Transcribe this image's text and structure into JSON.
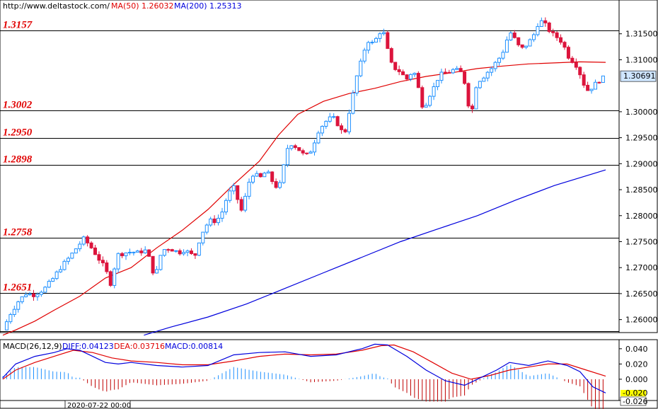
{
  "header": {
    "url": "http://www.deltastock.com/",
    "ma50_label": "MA(50)",
    "ma50_value": "1.26032",
    "ma200_label": "MA(200)",
    "ma200_value": "1.25313"
  },
  "macd_header": {
    "name": "MACD(26,12,9)",
    "diff": "DIFF:0.04123",
    "dea": "DEA:0.03716",
    "macd": "MACD:0.00814"
  },
  "colors": {
    "bull": "#1e90ff",
    "bear": "#dc143c",
    "ma50": "#e00000",
    "ma200": "#0000dd",
    "level_text": "#e00000",
    "current_price_bg": "#cfe6ff",
    "macd_hist_pos": "#1e90ff",
    "macd_hist_neg": "#c00000"
  },
  "chart_data": {
    "type": "candlestick",
    "price_axis": {
      "ylim": [
        1.2575,
        1.3215
      ],
      "ticks": [
        "1.31500",
        "1.31000",
        "1.30000",
        "1.29500",
        "1.29000",
        "1.28500",
        "1.28000",
        "1.27500",
        "1.27000",
        "1.26500",
        "1.26000"
      ],
      "current_price": "1.30691"
    },
    "levels": [
      {
        "label": "1.3157",
        "value": 1.3157
      },
      {
        "label": "1.3002",
        "value": 1.3002
      },
      {
        "label": "1.2950",
        "value": 1.295
      },
      {
        "label": "1.2898",
        "value": 1.2898
      },
      {
        "label": "1.2758",
        "value": 1.2758
      },
      {
        "label": "1.2651",
        "value": 1.2651
      },
      {
        "label": "",
        "value": 1.2578
      }
    ],
    "close_path": [
      [
        0,
        1.258
      ],
      [
        6,
        1.2612
      ],
      [
        12,
        1.2635
      ],
      [
        18,
        1.265
      ],
      [
        24,
        1.2648
      ],
      [
        32,
        1.2658
      ],
      [
        38,
        1.2675
      ],
      [
        45,
        1.27
      ],
      [
        52,
        1.272
      ],
      [
        58,
        1.274
      ],
      [
        63,
        1.2755
      ],
      [
        67,
        1.2745
      ],
      [
        70,
        1.2735
      ],
      [
        74,
        1.272
      ],
      [
        78,
        1.2705
      ],
      [
        81,
        1.269
      ],
      [
        84,
        1.267
      ],
      [
        87,
        1.27
      ],
      [
        90,
        1.2725
      ],
      [
        94,
        1.2728
      ],
      [
        98,
        1.273
      ],
      [
        102,
        1.273
      ],
      [
        106,
        1.2728
      ],
      [
        110,
        1.2735
      ],
      [
        113,
        1.2728
      ],
      [
        116,
        1.27
      ],
      [
        119,
        1.268
      ],
      [
        122,
        1.272
      ],
      [
        126,
        1.2735
      ],
      [
        130,
        1.2738
      ],
      [
        134,
        1.2732
      ],
      [
        138,
        1.273
      ],
      [
        142,
        1.2735
      ],
      [
        146,
        1.2725
      ],
      [
        150,
        1.2725
      ],
      [
        154,
        1.276
      ],
      [
        158,
        1.278
      ],
      [
        162,
        1.279
      ],
      [
        166,
        1.279
      ],
      [
        170,
        1.28
      ],
      [
        174,
        1.283
      ],
      [
        178,
        1.285
      ],
      [
        181,
        1.2855
      ],
      [
        184,
        1.282
      ],
      [
        187,
        1.2805
      ],
      [
        190,
        1.285
      ],
      [
        194,
        1.288
      ],
      [
        197,
        1.288
      ],
      [
        200,
        1.287
      ],
      [
        203,
        1.288
      ],
      [
        206,
        1.2885
      ],
      [
        209,
        1.287
      ],
      [
        212,
        1.286
      ],
      [
        215,
        1.285
      ],
      [
        218,
        1.288
      ],
      [
        221,
        1.2925
      ],
      [
        224,
        1.294
      ],
      [
        227,
        1.2935
      ],
      [
        230,
        1.293
      ],
      [
        233,
        1.292
      ],
      [
        236,
        1.2915
      ],
      [
        239,
        1.292
      ],
      [
        242,
        1.2935
      ],
      [
        245,
        1.296
      ],
      [
        248,
        1.297
      ],
      [
        251,
        1.298
      ],
      [
        254,
        1.2985
      ],
      [
        257,
        1.299
      ],
      [
        260,
        1.298
      ],
      [
        263,
        1.297
      ],
      [
        266,
        1.295
      ],
      [
        269,
        1.299
      ],
      [
        272,
        1.302
      ],
      [
        275,
        1.306
      ],
      [
        278,
        1.3085
      ],
      [
        281,
        1.311
      ],
      [
        284,
        1.314
      ],
      [
        287,
        1.313
      ],
      [
        290,
        1.3135
      ],
      [
        293,
        1.315
      ],
      [
        296,
        1.316
      ],
      [
        299,
        1.313
      ],
      [
        302,
        1.3095
      ],
      [
        305,
        1.3085
      ],
      [
        308,
        1.308
      ],
      [
        311,
        1.3075
      ],
      [
        314,
        1.306
      ],
      [
        317,
        1.307
      ],
      [
        320,
        1.308
      ],
      [
        323,
        1.306
      ],
      [
        326,
        1.3015
      ],
      [
        329,
        1.301
      ],
      [
        332,
        1.303
      ],
      [
        335,
        1.304
      ],
      [
        338,
        1.306
      ],
      [
        341,
        1.307
      ],
      [
        344,
        1.3075
      ],
      [
        347,
        1.3075
      ],
      [
        350,
        1.308
      ],
      [
        353,
        1.308
      ],
      [
        356,
        1.3078
      ],
      [
        359,
        1.307
      ],
      [
        362,
        1.303
      ],
      [
        365,
        1.2985
      ],
      [
        368,
        1.3045
      ],
      [
        371,
        1.306
      ],
      [
        374,
        1.3065
      ],
      [
        377,
        1.3075
      ],
      [
        380,
        1.308
      ],
      [
        383,
        1.309
      ],
      [
        386,
        1.31
      ],
      [
        389,
        1.311
      ],
      [
        392,
        1.313
      ],
      [
        395,
        1.3155
      ],
      [
        398,
        1.3145
      ],
      [
        401,
        1.313
      ],
      [
        404,
        1.312
      ],
      [
        407,
        1.3125
      ],
      [
        410,
        1.3135
      ],
      [
        413,
        1.314
      ],
      [
        416,
        1.3165
      ],
      [
        419,
        1.3175
      ],
      [
        422,
        1.317
      ],
      [
        425,
        1.316
      ],
      [
        428,
        1.315
      ],
      [
        431,
        1.3145
      ],
      [
        434,
        1.314
      ],
      [
        437,
        1.313
      ],
      [
        440,
        1.311
      ],
      [
        443,
        1.31
      ],
      [
        446,
        1.3095
      ],
      [
        449,
        1.308
      ],
      [
        452,
        1.306
      ],
      [
        455,
        1.304
      ],
      [
        458,
        1.3045
      ],
      [
        461,
        1.305
      ],
      [
        464,
        1.306
      ],
      [
        467,
        1.3062
      ],
      [
        470,
        1.3069
      ]
    ],
    "ma50_path": [
      [
        0,
        1.257
      ],
      [
        10,
        1.258
      ],
      [
        25,
        1.2597
      ],
      [
        40,
        1.2618
      ],
      [
        60,
        1.2645
      ],
      [
        80,
        1.268
      ],
      [
        100,
        1.27
      ],
      [
        120,
        1.2738
      ],
      [
        140,
        1.2772
      ],
      [
        160,
        1.2812
      ],
      [
        180,
        1.286
      ],
      [
        200,
        1.2905
      ],
      [
        215,
        1.2955
      ],
      [
        230,
        1.2995
      ],
      [
        250,
        1.302
      ],
      [
        270,
        1.3035
      ],
      [
        290,
        1.3045
      ],
      [
        310,
        1.3058
      ],
      [
        330,
        1.3068
      ],
      [
        350,
        1.3075
      ],
      [
        370,
        1.3083
      ],
      [
        390,
        1.3088
      ],
      [
        410,
        1.3092
      ],
      [
        430,
        1.3094
      ],
      [
        450,
        1.3096
      ],
      [
        470,
        1.3095
      ]
    ],
    "ma200_path": [
      [
        110,
        1.257
      ],
      [
        130,
        1.2585
      ],
      [
        160,
        1.2605
      ],
      [
        190,
        1.263
      ],
      [
        220,
        1.266
      ],
      [
        250,
        1.269
      ],
      [
        280,
        1.272
      ],
      [
        310,
        1.275
      ],
      [
        340,
        1.2775
      ],
      [
        370,
        1.28
      ],
      [
        400,
        1.283
      ],
      [
        430,
        1.2858
      ],
      [
        470,
        1.2888
      ]
    ],
    "macd_axis": {
      "ylim": [
        -0.027,
        0.051
      ],
      "ticks": [
        "0.040",
        "0.020",
        "0.000"
      ],
      "highlight_labels": [
        "-0.020",
        "-0.026"
      ]
    },
    "diff_path": [
      [
        0,
        0.002
      ],
      [
        10,
        0.02
      ],
      [
        25,
        0.03
      ],
      [
        40,
        0.035
      ],
      [
        50,
        0.04
      ],
      [
        60,
        0.038
      ],
      [
        70,
        0.03
      ],
      [
        80,
        0.022
      ],
      [
        90,
        0.02
      ],
      [
        100,
        0.022
      ],
      [
        120,
        0.018
      ],
      [
        140,
        0.016
      ],
      [
        160,
        0.018
      ],
      [
        180,
        0.032
      ],
      [
        200,
        0.035
      ],
      [
        220,
        0.036
      ],
      [
        240,
        0.03
      ],
      [
        260,
        0.032
      ],
      [
        280,
        0.04
      ],
      [
        290,
        0.046
      ],
      [
        300,
        0.045
      ],
      [
        315,
        0.03
      ],
      [
        330,
        0.012
      ],
      [
        345,
        -0.002
      ],
      [
        360,
        -0.008
      ],
      [
        370,
        0.0
      ],
      [
        385,
        0.012
      ],
      [
        395,
        0.022
      ],
      [
        410,
        0.018
      ],
      [
        425,
        0.024
      ],
      [
        440,
        0.018
      ],
      [
        450,
        0.01
      ],
      [
        460,
        -0.01
      ],
      [
        470,
        -0.018
      ]
    ],
    "dea_path": [
      [
        0,
        0.0
      ],
      [
        10,
        0.012
      ],
      [
        25,
        0.022
      ],
      [
        40,
        0.03
      ],
      [
        55,
        0.038
      ],
      [
        70,
        0.035
      ],
      [
        85,
        0.028
      ],
      [
        100,
        0.024
      ],
      [
        120,
        0.022
      ],
      [
        140,
        0.019
      ],
      [
        160,
        0.019
      ],
      [
        180,
        0.024
      ],
      [
        200,
        0.03
      ],
      [
        220,
        0.033
      ],
      [
        240,
        0.032
      ],
      [
        260,
        0.033
      ],
      [
        280,
        0.038
      ],
      [
        295,
        0.044
      ],
      [
        305,
        0.045
      ],
      [
        320,
        0.036
      ],
      [
        335,
        0.022
      ],
      [
        350,
        0.008
      ],
      [
        365,
        0.0
      ],
      [
        380,
        0.005
      ],
      [
        395,
        0.012
      ],
      [
        410,
        0.016
      ],
      [
        425,
        0.02
      ],
      [
        440,
        0.02
      ],
      [
        455,
        0.012
      ],
      [
        470,
        0.004
      ]
    ],
    "date_label": "2020-07-22 00:00"
  }
}
